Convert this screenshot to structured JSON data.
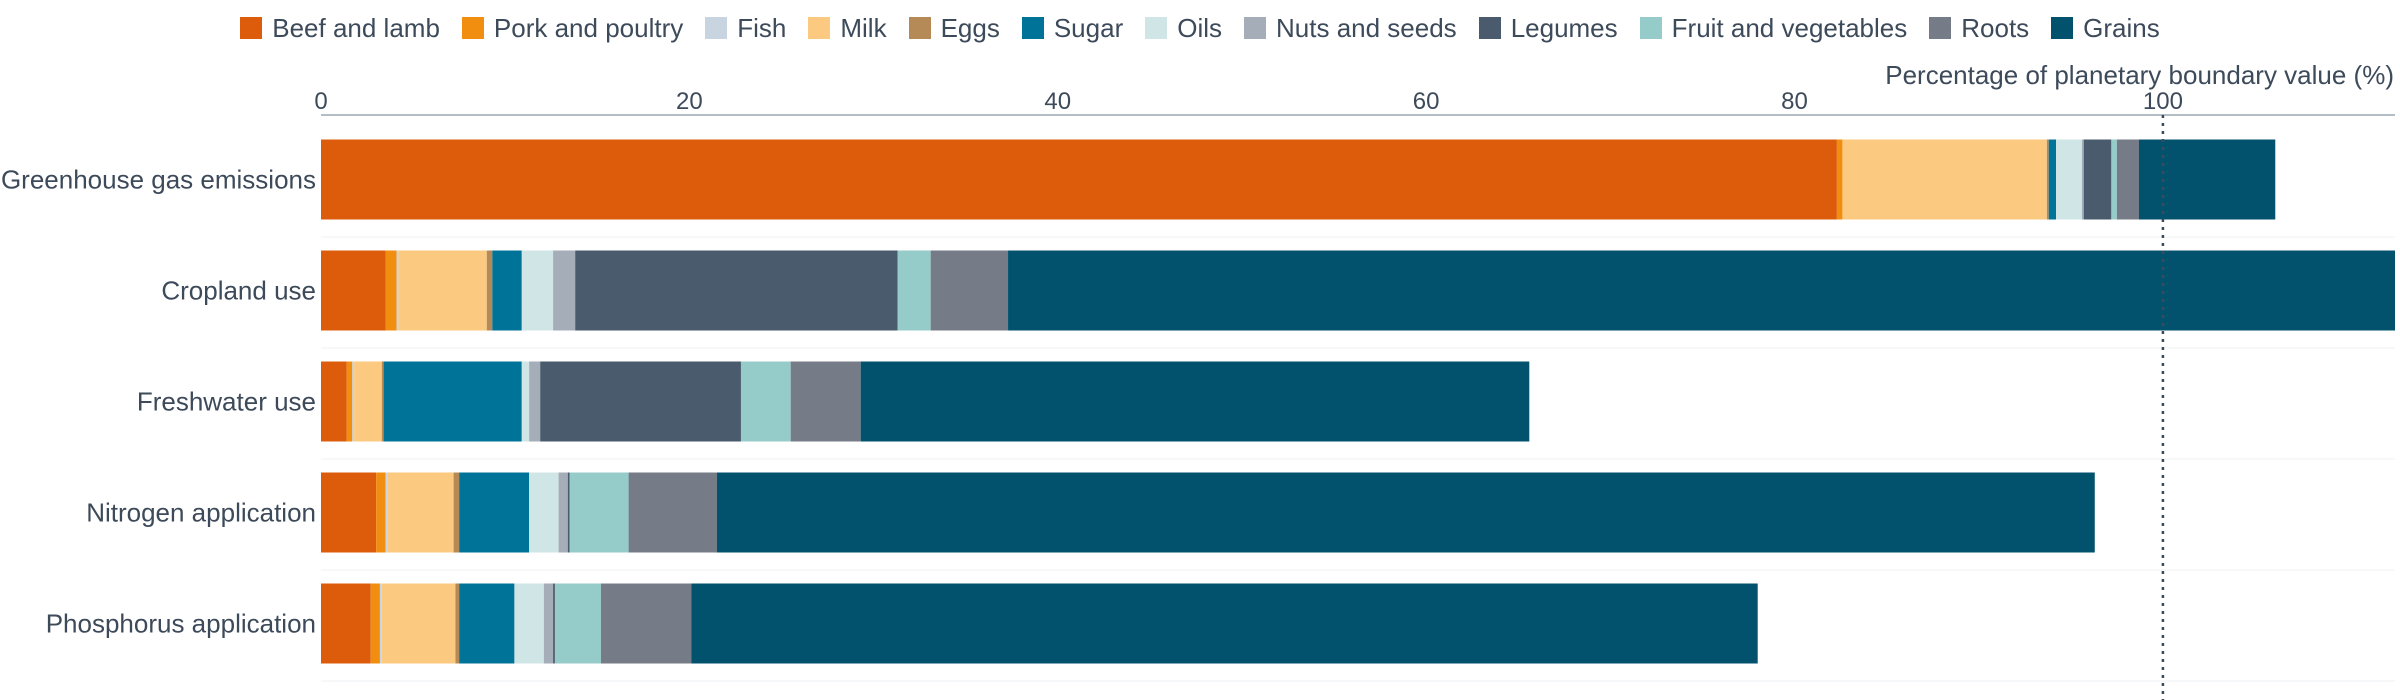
{
  "chart_data": {
    "type": "bar",
    "orientation": "horizontal",
    "stacked": true,
    "xlabel": "Percentage of planetary boundary value (%)",
    "xlim": [
      0,
      112.6
    ],
    "xticks": [
      0,
      20,
      40,
      60,
      80,
      100
    ],
    "reference_line": 100,
    "categories": [
      "Greenhouse gas emissions",
      "Cropland use",
      "Freshwater use",
      "Nitrogen application",
      "Phosphorus application"
    ],
    "legend_position": "top",
    "series": [
      {
        "name": "Beef and lamb",
        "color": "#dd5c0b",
        "values": [
          82.3,
          3.5,
          1.4,
          3.0,
          2.7
        ]
      },
      {
        "name": "Pork and poultry",
        "color": "#f28e0f",
        "values": [
          0.3,
          0.6,
          0.3,
          0.5,
          0.5
        ]
      },
      {
        "name": "Fish",
        "color": "#c8d5e0",
        "values": [
          0.0,
          0.1,
          0.1,
          0.1,
          0.1
        ]
      },
      {
        "name": "Milk",
        "color": "#fbc97f",
        "values": [
          11.1,
          4.8,
          1.5,
          3.6,
          4.0
        ]
      },
      {
        "name": "Eggs",
        "color": "#b58a57",
        "values": [
          0.1,
          0.3,
          0.1,
          0.3,
          0.2
        ]
      },
      {
        "name": "Sugar",
        "color": "#007398",
        "values": [
          0.4,
          1.6,
          7.5,
          3.8,
          3.0
        ]
      },
      {
        "name": "Oils",
        "color": "#d0e5e5",
        "values": [
          1.4,
          1.7,
          0.4,
          1.6,
          1.6
        ]
      },
      {
        "name": "Nuts and seeds",
        "color": "#a5adb8",
        "values": [
          0.1,
          1.2,
          0.6,
          0.5,
          0.5
        ]
      },
      {
        "name": "Legumes",
        "color": "#495b6d",
        "values": [
          1.5,
          17.5,
          10.9,
          0.1,
          0.1
        ]
      },
      {
        "name": "Fruit and vegetables",
        "color": "#95cbc9",
        "values": [
          0.3,
          1.8,
          2.7,
          3.2,
          2.5
        ]
      },
      {
        "name": "Roots",
        "color": "#767c87",
        "values": [
          1.2,
          4.2,
          3.8,
          4.8,
          4.9
        ]
      },
      {
        "name": "Grains",
        "color": "#02526d",
        "values": [
          7.4,
          75.3,
          36.3,
          74.8,
          57.9
        ]
      }
    ]
  }
}
